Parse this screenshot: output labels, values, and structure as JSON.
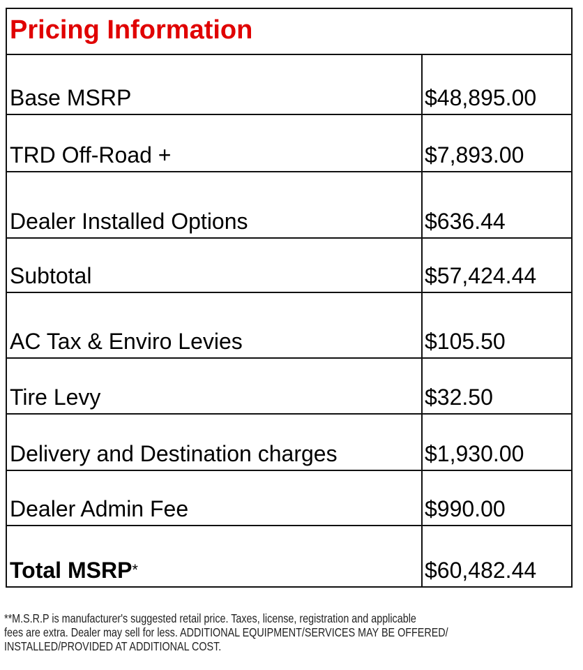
{
  "title": "Pricing Information",
  "rows": [
    {
      "label": "Base MSRP",
      "value": "$48,895.00"
    },
    {
      "label": "TRD Off-Road +",
      "value": "$7,893.00"
    },
    {
      "label": "Dealer Installed Options",
      "value": "$636.44"
    },
    {
      "label": "Subtotal",
      "value": "$57,424.44"
    },
    {
      "label": "AC Tax & Enviro Levies",
      "value": "$105.50"
    },
    {
      "label": "Tire Levy",
      "value": "$32.50"
    },
    {
      "label": "Delivery and Destination charges",
      "value": "$1,930.00"
    },
    {
      "label": "Dealer Admin Fee",
      "value": "$990.00"
    }
  ],
  "total": {
    "label": "Total MSRP",
    "asterisk": "*",
    "value": "$60,482.44"
  },
  "footnote": [
    "**M.S.R.P is manufacturer's suggested retail price. Taxes, license, registration and applicable",
    "fees are extra. Dealer may sell for less. ADDITIONAL EQUIPMENT/SERVICES MAY BE OFFERED/",
    "INSTALLED/PROVIDED AT ADDITIONAL COST."
  ],
  "colors": {
    "title": "#e00000"
  }
}
